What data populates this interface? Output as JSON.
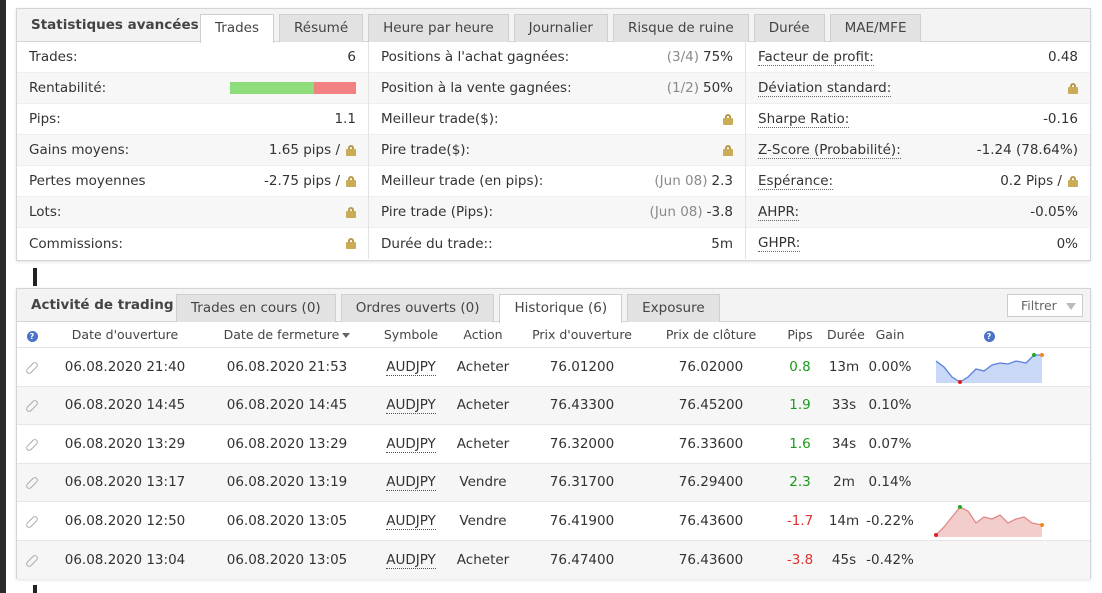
{
  "stats_panel": {
    "title": "Statistiques avancées",
    "tabs": [
      "Trades",
      "Résumé",
      "Heure par heure",
      "Journalier",
      "Risque de ruine",
      "Durée",
      "MAE/MFE"
    ],
    "active_tab": "Trades",
    "col1": [
      {
        "label": "Trades:",
        "value": "6"
      },
      {
        "label": "Rentabilité:",
        "profitability_win_fraction": 0.667
      },
      {
        "label": "Pips:",
        "value": "1.1"
      },
      {
        "label": "Gains moyens:",
        "value": "1.65 pips /",
        "lock": true
      },
      {
        "label": "Pertes moyennes",
        "value": "-2.75 pips /",
        "lock": true
      },
      {
        "label": "Lots:",
        "lock": true
      },
      {
        "label": "Commissions:",
        "lock": true
      }
    ],
    "col2": [
      {
        "label": "Positions à l'achat gagnées:",
        "sub": "(3/4)",
        "value": "75%"
      },
      {
        "label": "Position à la vente gagnées:",
        "sub": "(1/2)",
        "value": "50%"
      },
      {
        "label": "Meilleur trade($):",
        "lock": true
      },
      {
        "label": "Pire trade($):",
        "lock": true
      },
      {
        "label": "Meilleur trade (en pips):",
        "sub": "(Jun 08)",
        "value": "2.3"
      },
      {
        "label": "Pire trade (Pips):",
        "sub": "(Jun 08)",
        "value": "-3.8"
      },
      {
        "label": "Durée du trade::",
        "value": "5m"
      }
    ],
    "col3": [
      {
        "label": "Facteur de profit:",
        "value": "0.48"
      },
      {
        "label": "Déviation standard:",
        "lock": true
      },
      {
        "label": "Sharpe Ratio:",
        "value": "-0.16"
      },
      {
        "label": "Z-Score (Probabilité):",
        "value": "-1.24 (78.64%)"
      },
      {
        "label": "Espérance:",
        "value": "0.2 Pips /",
        "lock": true
      },
      {
        "label": "AHPR:",
        "value": "-0.05%"
      },
      {
        "label": "GHPR:",
        "value": "0%"
      }
    ]
  },
  "activity_panel": {
    "title": "Activité de trading",
    "tabs": [
      "Trades en cours (0)",
      "Ordres ouverts (0)",
      "Historique (6)",
      "Exposure"
    ],
    "active_tab": "Historique (6)",
    "filter_label": "Filtrer",
    "help_glyph": "?",
    "columns": [
      "Date d'ouverture",
      "Date de fermeture",
      "Symbole",
      "Action",
      "Prix d'ouverture",
      "Prix de clôture",
      "Pips",
      "Durée",
      "Gain"
    ],
    "rows": [
      {
        "open": "06.08.2020 21:40",
        "close": "06.08.2020 21:53",
        "symbol": "AUDJPY",
        "action": "Acheter",
        "open_price": "76.01200",
        "close_price": "76.02000",
        "pips": "0.8",
        "duration": "13m",
        "gain": "0.00%",
        "spark": "up"
      },
      {
        "open": "06.08.2020 14:45",
        "close": "06.08.2020 14:45",
        "symbol": "AUDJPY",
        "action": "Acheter",
        "open_price": "76.43300",
        "close_price": "76.45200",
        "pips": "1.9",
        "duration": "33s",
        "gain": "0.10%"
      },
      {
        "open": "06.08.2020 13:29",
        "close": "06.08.2020 13:29",
        "symbol": "AUDJPY",
        "action": "Acheter",
        "open_price": "76.32000",
        "close_price": "76.33600",
        "pips": "1.6",
        "duration": "34s",
        "gain": "0.07%"
      },
      {
        "open": "06.08.2020 13:17",
        "close": "06.08.2020 13:19",
        "symbol": "AUDJPY",
        "action": "Vendre",
        "open_price": "76.31700",
        "close_price": "76.29400",
        "pips": "2.3",
        "duration": "2m",
        "gain": "0.14%"
      },
      {
        "open": "06.08.2020 12:50",
        "close": "06.08.2020 13:05",
        "symbol": "AUDJPY",
        "action": "Vendre",
        "open_price": "76.41900",
        "close_price": "76.43600",
        "pips": "-1.7",
        "duration": "14m",
        "gain": "-0.22%",
        "spark": "down"
      },
      {
        "open": "06.08.2020 13:04",
        "close": "06.08.2020 13:05",
        "symbol": "AUDJPY",
        "action": "Acheter",
        "open_price": "76.47400",
        "close_price": "76.43600",
        "pips": "-3.8",
        "duration": "45s",
        "gain": "-0.42%"
      }
    ]
  },
  "colors": {
    "positive": "#1a9a1a",
    "negative": "#e03030",
    "win_bar": "#8fdc7b",
    "loss_bar": "#f48181",
    "spark_up_fill": "#c8d8f6",
    "spark_up_line": "#5b7fe0",
    "spark_down_fill": "#f3cccc",
    "spark_down_line": "#e08a8a"
  }
}
